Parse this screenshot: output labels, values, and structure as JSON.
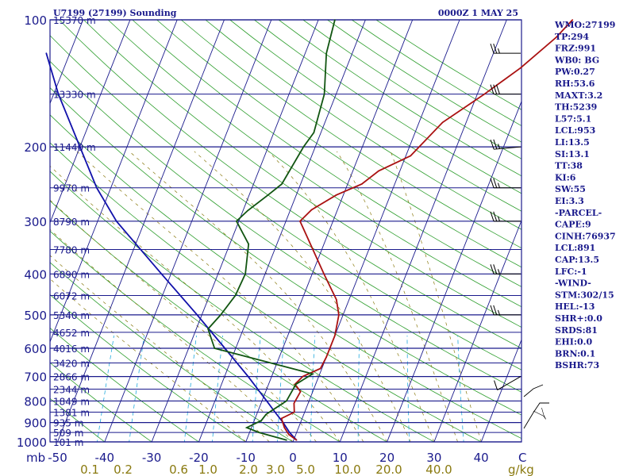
{
  "header": {
    "title": "U7199 (27199) Sounding",
    "time": "0000Z  1 MAY 25"
  },
  "indices": [
    "WMO:27199",
    "TP:294",
    "FRZ:991",
    "WB0: BG",
    "PW:0.27",
    "RH:53.6",
    "MAXT:3.2",
    "TH:5239",
    "L57:5.1",
    "LCL:953",
    "LI:13.5",
    "SI:13.1",
    "TT:38",
    "KI:6",
    "SW:55",
    "EI:3.3",
    "-PARCEL-",
    "CAPE:9",
    "CINH:76937",
    "LCL:891",
    "CAP:13.5",
    "LFC:-1",
    "-WIND-",
    "STM:302/15",
    "HEL:-13",
    "SHR+:0.0",
    "SRDS:81",
    "EHI:0.0",
    "BRN:0.1",
    "BSHR:73"
  ],
  "colors": {
    "frame": "#1a1a8c",
    "isobar": "#1a1a8c",
    "isotherm": "#1a1a8c",
    "dry_adiabat": "#2e9e2e",
    "mixing_ratio": "#22aadd",
    "moist_adiabat": "#8a7a10",
    "temperature": "#aa1111",
    "dewpoint": "#115511",
    "parcel": "#1111aa",
    "wind": "#000000"
  },
  "chart_data": {
    "type": "line",
    "title": "U7199 (27199) Sounding",
    "subtitle": "0000Z  1 MAY 25",
    "x_axis": {
      "label": "C",
      "unit_label_left": "mb",
      "range": [
        -50,
        50
      ],
      "ticks": [
        "-50",
        "-40",
        "-30",
        "-20",
        "-10",
        "0",
        "10",
        "20",
        "30",
        "40"
      ],
      "tick_values": [
        -50,
        -40,
        -30,
        -20,
        -10,
        0,
        10,
        20,
        30,
        40
      ],
      "scale": "skew-T"
    },
    "y_axis": {
      "label": "mb",
      "scale": "log",
      "range": [
        1000,
        100
      ],
      "ticks": [
        "100",
        "200",
        "300",
        "400",
        "500",
        "600",
        "700",
        "800",
        "900",
        "1000"
      ],
      "tick_values": [
        100,
        200,
        300,
        400,
        500,
        600,
        700,
        800,
        900,
        1000
      ],
      "height_labels": [
        {
          "p": 100,
          "label": "15370 m"
        },
        {
          "p": 150,
          "label": "13330 m"
        },
        {
          "p": 200,
          "label": "11440 m"
        },
        {
          "p": 250,
          "label": "9970 m"
        },
        {
          "p": 300,
          "label": "8790 m"
        },
        {
          "p": 350,
          "label": "7780 m"
        },
        {
          "p": 400,
          "label": "6890 m"
        },
        {
          "p": 450,
          "label": "6072 m"
        },
        {
          "p": 500,
          "label": "5340 m"
        },
        {
          "p": 550,
          "label": "4652 m"
        },
        {
          "p": 600,
          "label": "4016 m"
        },
        {
          "p": 650,
          "label": "3420 m"
        },
        {
          "p": 700,
          "label": "2866 m"
        },
        {
          "p": 750,
          "label": "2344 m"
        },
        {
          "p": 800,
          "label": "1849 m"
        },
        {
          "p": 850,
          "label": "1381 m"
        },
        {
          "p": 900,
          "label": "935 m"
        },
        {
          "p": 950,
          "label": "509 m"
        },
        {
          "p": 1000,
          "label": "101 m"
        }
      ]
    },
    "mixing_ratio_labels": {
      "label": "g/kg",
      "values": [
        "0.1",
        "0.2",
        "0.6",
        "1.0",
        "2.0",
        "3.0",
        "5.0",
        "10.0",
        "20.0",
        "40.0"
      ],
      "numeric": [
        0.1,
        0.2,
        0.6,
        1.0,
        2.0,
        3.0,
        5.0,
        10.0,
        20.0,
        40.0
      ]
    },
    "grid": true,
    "series": [],
    "profiles": {
      "temperature": [
        {
          "p": 990,
          "t": 0.6
        },
        {
          "p": 960,
          "t": -1.5
        },
        {
          "p": 925,
          "t": -3.0
        },
        {
          "p": 880,
          "t": -4.4
        },
        {
          "p": 850,
          "t": -2.2
        },
        {
          "p": 810,
          "t": -3.0
        },
        {
          "p": 760,
          "t": -2.6
        },
        {
          "p": 730,
          "t": -4.4
        },
        {
          "p": 700,
          "t": -3.4
        },
        {
          "p": 670,
          "t": -0.3
        },
        {
          "p": 630,
          "t": 0.0
        },
        {
          "p": 560,
          "t": 0.0
        },
        {
          "p": 500,
          "t": -0.9
        },
        {
          "p": 460,
          "t": -2.7
        },
        {
          "p": 400,
          "t": -7.5
        },
        {
          "p": 300,
          "t": -17.0
        },
        {
          "p": 282,
          "t": -15.5
        },
        {
          "p": 260,
          "t": -11.5
        },
        {
          "p": 245,
          "t": -7.0
        },
        {
          "p": 228,
          "t": -4.5
        },
        {
          "p": 210,
          "t": 1.0
        },
        {
          "p": 175,
          "t": 5.0
        },
        {
          "p": 150,
          "t": 11.5
        },
        {
          "p": 130,
          "t": 17.0
        },
        {
          "p": 110,
          "t": 22.0
        },
        {
          "p": 100,
          "t": 24.0
        }
      ],
      "dewpoint": [
        {
          "p": 990,
          "t": -1.5
        },
        {
          "p": 950,
          "t": -8.0
        },
        {
          "p": 925,
          "t": -11.0
        },
        {
          "p": 890,
          "t": -8.5
        },
        {
          "p": 860,
          "t": -8.0
        },
        {
          "p": 800,
          "t": -4.8
        },
        {
          "p": 730,
          "t": -4.2
        },
        {
          "p": 690,
          "t": -1.5
        },
        {
          "p": 600,
          "t": -24.5
        },
        {
          "p": 540,
          "t": -27.5
        },
        {
          "p": 500,
          "t": -26.0
        },
        {
          "p": 450,
          "t": -24.5
        },
        {
          "p": 400,
          "t": -24.2
        },
        {
          "p": 340,
          "t": -26.0
        },
        {
          "p": 300,
          "t": -30.5
        },
        {
          "p": 283,
          "t": -29.0
        },
        {
          "p": 260,
          "t": -26.0
        },
        {
          "p": 245,
          "t": -24.0
        },
        {
          "p": 200,
          "t": -22.5
        },
        {
          "p": 185,
          "t": -21.5
        },
        {
          "p": 150,
          "t": -22.5
        },
        {
          "p": 120,
          "t": -25.5
        },
        {
          "p": 100,
          "t": -26.5
        }
      ],
      "parcel": [
        {
          "p": 990,
          "t": 0.6
        },
        {
          "p": 950,
          "t": -1.5
        },
        {
          "p": 900,
          "t": -3.7
        },
        {
          "p": 850,
          "t": -6.3
        },
        {
          "p": 800,
          "t": -9.0
        },
        {
          "p": 750,
          "t": -11.9
        },
        {
          "p": 700,
          "t": -15.0
        },
        {
          "p": 600,
          "t": -22.3
        },
        {
          "p": 500,
          "t": -31.0
        },
        {
          "p": 400,
          "t": -42.0
        },
        {
          "p": 300,
          "t": -56.0
        },
        {
          "p": 250,
          "t": -63.0
        },
        {
          "p": 200,
          "t": -70.0
        },
        {
          "p": 150,
          "t": -79.0
        },
        {
          "p": 120,
          "t": -85.0
        }
      ]
    },
    "wind_barbs": [
      {
        "p": 120,
        "dir": 270,
        "spd": 25
      },
      {
        "p": 150,
        "dir": 270,
        "spd": 30
      },
      {
        "p": 200,
        "dir": 275,
        "spd": 25
      },
      {
        "p": 250,
        "dir": 270,
        "spd": 25
      },
      {
        "p": 300,
        "dir": 270,
        "spd": 25
      },
      {
        "p": 400,
        "dir": 270,
        "spd": 25
      },
      {
        "p": 500,
        "dir": 270,
        "spd": 25
      },
      {
        "p": 700,
        "dir": 300,
        "spd": 10
      }
    ],
    "hodograph": [
      {
        "u": 0,
        "v": 0
      },
      {
        "u": 10,
        "v": -5
      },
      {
        "u": 12,
        "v": -8
      },
      {
        "u": 10,
        "v": -4
      },
      {
        "u": 8,
        "v": 3
      }
    ]
  }
}
